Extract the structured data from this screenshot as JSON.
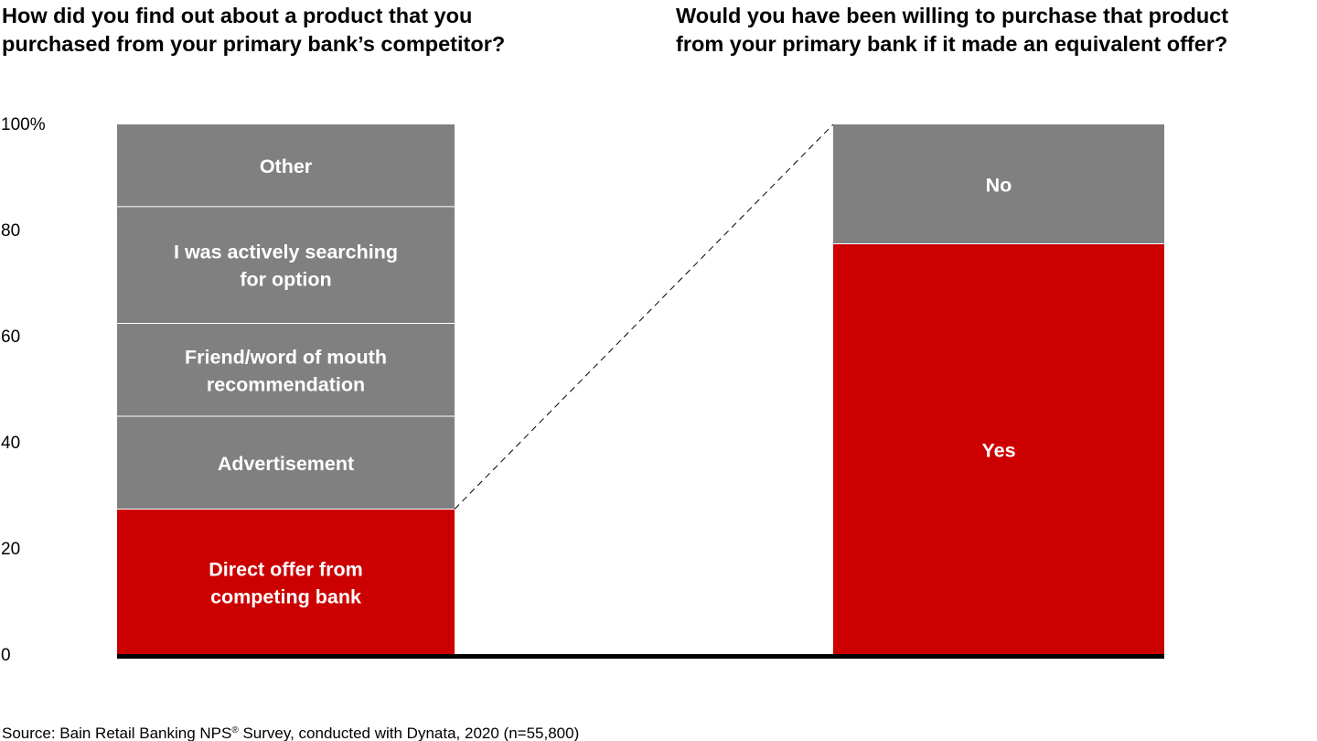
{
  "chart_data": {
    "type": "bar",
    "stacked": true,
    "ylim": [
      0,
      100
    ],
    "y_ticks": [
      {
        "value": 0,
        "label": "0"
      },
      {
        "value": 20,
        "label": "20"
      },
      {
        "value": 40,
        "label": "40"
      },
      {
        "value": 60,
        "label": "60"
      },
      {
        "value": 80,
        "label": "80"
      },
      {
        "value": 100,
        "label": "100%"
      }
    ],
    "grid": false,
    "legend": "none",
    "panels": [
      {
        "title": "How did you find out about a product that you\npurchased from your primary bank’s competitor?",
        "segments": [
          {
            "label": "Direct offer from\ncompeting bank",
            "value": 27.5,
            "color": "#CC0000"
          },
          {
            "label": "Advertisement",
            "value": 17.5,
            "color": "#808080"
          },
          {
            "label": "Friend/word of mouth\nrecommendation",
            "value": 17.5,
            "color": "#808080"
          },
          {
            "label": "I was actively searching\nfor option",
            "value": 22,
            "color": "#808080"
          },
          {
            "label": "Other",
            "value": 15.5,
            "color": "#808080"
          }
        ]
      },
      {
        "title": "Would you have been willing to purchase that product\nfrom your primary bank if it made an equivalent offer?",
        "segments": [
          {
            "label": "Yes",
            "value": 77.5,
            "color": "#CC0000"
          },
          {
            "label": "No",
            "value": 22.5,
            "color": "#808080"
          }
        ]
      }
    ],
    "source": {
      "prefix": "Source: Bain Retail Banking NPS",
      "mark": "®",
      "suffix": " Survey, conducted with Dynata, 2020 (n=55,800)"
    }
  }
}
